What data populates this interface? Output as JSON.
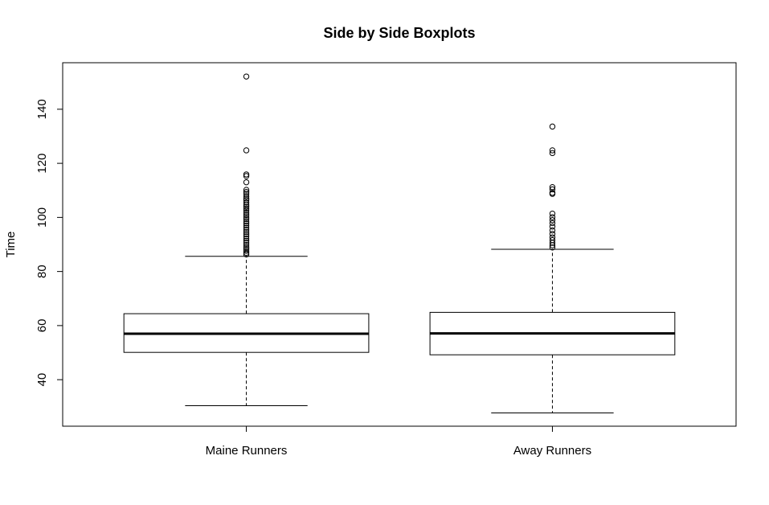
{
  "chart_data": {
    "type": "boxplot",
    "title": "Side by Side Boxplots",
    "xlabel": "",
    "ylabel": "Time",
    "ylim": [
      22.8,
      157.2
    ],
    "yticks": [
      40,
      60,
      80,
      100,
      120,
      140
    ],
    "grid": false,
    "categories": [
      "Maine Runners",
      "Away Runners"
    ],
    "boxes": [
      {
        "name": "Maine Runners",
        "whisker_low": 30.4,
        "q1": 50.1,
        "median": 57.0,
        "q3": 64.4,
        "whisker_high": 85.6,
        "outliers": [
          152.1,
          124.8,
          115.9,
          115.3,
          113.0,
          110.2,
          109.4,
          108.7,
          107.8,
          107.0,
          106.4,
          105.5,
          104.6,
          103.9,
          103.2,
          102.5,
          101.7,
          100.9,
          100.1,
          99.4,
          98.6,
          97.8,
          97.0,
          96.2,
          95.4,
          94.6,
          93.8,
          93.0,
          92.2,
          91.4,
          90.6,
          89.8,
          89.0,
          88.3,
          87.6,
          86.9,
          86.3
        ]
      },
      {
        "name": "Away Runners",
        "whisker_low": 27.7,
        "q1": 49.2,
        "median": 57.1,
        "q3": 64.9,
        "whisker_high": 88.2,
        "outliers": [
          133.6,
          124.8,
          123.8,
          111.2,
          110.4,
          109.1,
          108.7,
          101.4,
          100.1,
          99.0,
          97.9,
          96.6,
          95.2,
          93.9,
          92.6,
          91.6,
          90.6,
          89.7,
          88.9
        ]
      }
    ],
    "colors": {
      "stroke": "#000000",
      "fill": "#ffffff"
    }
  }
}
